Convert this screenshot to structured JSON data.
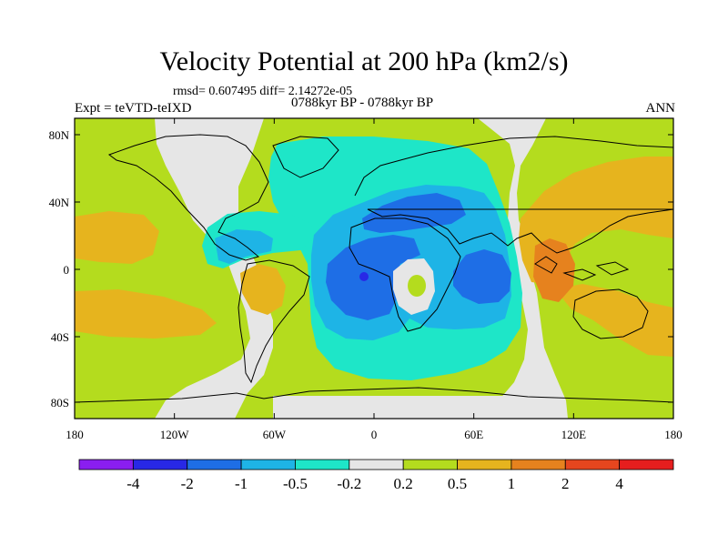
{
  "figure": {
    "title": "Velocity Potential at 200 hPa (km2/s)",
    "stats": "rmsd= 0.607495 diff= 2.14272e-05",
    "experiment": "Expt = teVTD-teIXD",
    "period": "0788kyr BP - 0788kyr BP",
    "season": "ANN"
  },
  "map": {
    "projection": "cylindrical-equidistant",
    "lon_range": [
      -180,
      180
    ],
    "lat_range": [
      -90,
      90
    ],
    "xticks": [
      "180",
      "120W",
      "60W",
      "0",
      "60E",
      "120E",
      "180"
    ],
    "yticks": [
      "80N",
      "40N",
      "0",
      "40S",
      "80S"
    ]
  },
  "colorbar": {
    "labels": [
      "-4",
      "-2",
      "-1",
      "-0.5",
      "-0.2",
      "0.2",
      "0.5",
      "1",
      "2",
      "4"
    ],
    "colors": [
      "#8a1ef0",
      "#2828e6",
      "#1e6ee6",
      "#1eb4e6",
      "#1ee6c8",
      "#e6e6e6",
      "#b4dc1e",
      "#e6b41e",
      "#e6821e",
      "#e6461e",
      "#e61e1e"
    ]
  },
  "fill_colors": {
    "purple": "#8a1ef0",
    "dark_blue": "#2828e6",
    "blue": "#1e6ee6",
    "light_blue": "#1eb4e6",
    "cyan": "#1ee6c8",
    "grey": "#e6e6e6",
    "lime": "#b4dc1e",
    "yellow_orange": "#e6b41e",
    "orange": "#e6821e"
  }
}
